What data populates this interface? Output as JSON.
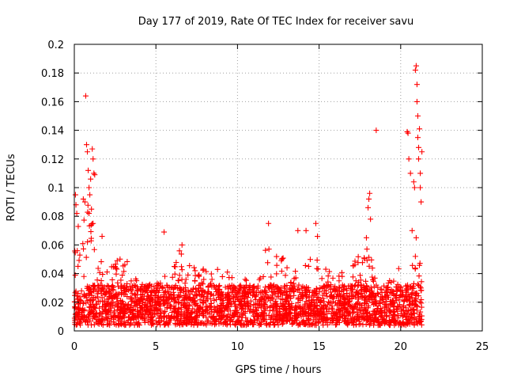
{
  "chart_data": {
    "type": "scatter",
    "title": "Day 177 of 2019, Rate Of TEC Index for receiver savu",
    "xlabel": "GPS time / hours",
    "ylabel": "ROTI / TECUs",
    "xlim": [
      0,
      25
    ],
    "ylim": [
      0,
      0.2
    ],
    "x_ticks": [
      "0",
      "5",
      "10",
      "15",
      "20",
      "25"
    ],
    "y_ticks": [
      "0",
      "0.02",
      "0.04",
      "0.06",
      "0.08",
      "0.1",
      "0.12",
      "0.14",
      "0.16",
      "0.18",
      "0.2"
    ],
    "grid": true,
    "marker": "+",
    "series_color": "#ff0000",
    "envelope": {
      "description": "approximate upper extent of dense point cloud (hours, ROTI)",
      "x": [
        0.0,
        0.2,
        0.4,
        0.6,
        0.8,
        1.0,
        1.2,
        1.4,
        1.6,
        2.0,
        2.5,
        3.0,
        3.5,
        4.0,
        4.5,
        5.0,
        5.5,
        6.0,
        6.5,
        7.0,
        7.5,
        8.0,
        8.5,
        9.0,
        9.5,
        10.0,
        10.5,
        11.0,
        11.5,
        12.0,
        12.5,
        13.0,
        13.5,
        14.0,
        14.5,
        15.0,
        15.5,
        16.0,
        16.5,
        17.0,
        17.5,
        18.0,
        18.5,
        19.0,
        19.5,
        20.0,
        20.5,
        21.0,
        21.3
      ],
      "y": [
        0.05,
        0.085,
        0.06,
        0.09,
        0.1,
        0.11,
        0.065,
        0.05,
        0.045,
        0.04,
        0.05,
        0.055,
        0.035,
        0.032,
        0.03,
        0.03,
        0.038,
        0.04,
        0.055,
        0.045,
        0.04,
        0.043,
        0.04,
        0.045,
        0.04,
        0.03,
        0.035,
        0.045,
        0.055,
        0.06,
        0.045,
        0.05,
        0.04,
        0.045,
        0.055,
        0.045,
        0.04,
        0.035,
        0.04,
        0.045,
        0.05,
        0.06,
        0.035,
        0.03,
        0.035,
        0.045,
        0.038,
        0.05,
        0.045
      ]
    },
    "spikes": [
      {
        "x": 0.07,
        "y": 0.095
      },
      {
        "x": 0.1,
        "y": 0.088
      },
      {
        "x": 0.15,
        "y": 0.082
      },
      {
        "x": 0.55,
        "y": 0.092
      },
      {
        "x": 0.65,
        "y": 0.09
      },
      {
        "x": 0.7,
        "y": 0.164
      },
      {
        "x": 0.75,
        "y": 0.13
      },
      {
        "x": 0.8,
        "y": 0.125
      },
      {
        "x": 0.85,
        "y": 0.112
      },
      {
        "x": 0.9,
        "y": 0.1
      },
      {
        "x": 0.95,
        "y": 0.095
      },
      {
        "x": 1.0,
        "y": 0.106
      },
      {
        "x": 1.05,
        "y": 0.085
      },
      {
        "x": 1.1,
        "y": 0.127
      },
      {
        "x": 1.15,
        "y": 0.12
      },
      {
        "x": 1.2,
        "y": 0.11
      },
      {
        "x": 1.25,
        "y": 0.109
      },
      {
        "x": 0.9,
        "y": 0.082
      },
      {
        "x": 1.15,
        "y": 0.075
      },
      {
        "x": 1.7,
        "y": 0.066
      },
      {
        "x": 5.5,
        "y": 0.069
      },
      {
        "x": 6.6,
        "y": 0.06
      },
      {
        "x": 11.9,
        "y": 0.075
      },
      {
        "x": 13.7,
        "y": 0.07
      },
      {
        "x": 14.2,
        "y": 0.07
      },
      {
        "x": 14.8,
        "y": 0.075
      },
      {
        "x": 14.9,
        "y": 0.066
      },
      {
        "x": 17.9,
        "y": 0.065
      },
      {
        "x": 18.05,
        "y": 0.092
      },
      {
        "x": 18.1,
        "y": 0.096
      },
      {
        "x": 18.0,
        "y": 0.086
      },
      {
        "x": 18.15,
        "y": 0.078
      },
      {
        "x": 18.5,
        "y": 0.14
      },
      {
        "x": 20.4,
        "y": 0.139
      },
      {
        "x": 20.45,
        "y": 0.138
      },
      {
        "x": 20.5,
        "y": 0.12
      },
      {
        "x": 20.6,
        "y": 0.11
      },
      {
        "x": 20.7,
        "y": 0.07
      },
      {
        "x": 20.8,
        "y": 0.104
      },
      {
        "x": 20.85,
        "y": 0.1
      },
      {
        "x": 20.9,
        "y": 0.182
      },
      {
        "x": 20.95,
        "y": 0.185
      },
      {
        "x": 21.0,
        "y": 0.172
      },
      {
        "x": 21.0,
        "y": 0.16
      },
      {
        "x": 21.05,
        "y": 0.15
      },
      {
        "x": 21.05,
        "y": 0.135
      },
      {
        "x": 21.1,
        "y": 0.128
      },
      {
        "x": 21.1,
        "y": 0.12
      },
      {
        "x": 21.15,
        "y": 0.141
      },
      {
        "x": 21.2,
        "y": 0.11
      },
      {
        "x": 21.2,
        "y": 0.1
      },
      {
        "x": 20.95,
        "y": 0.065
      },
      {
        "x": 20.9,
        "y": 0.052
      },
      {
        "x": 21.25,
        "y": 0.09
      },
      {
        "x": 21.3,
        "y": 0.125
      }
    ]
  }
}
